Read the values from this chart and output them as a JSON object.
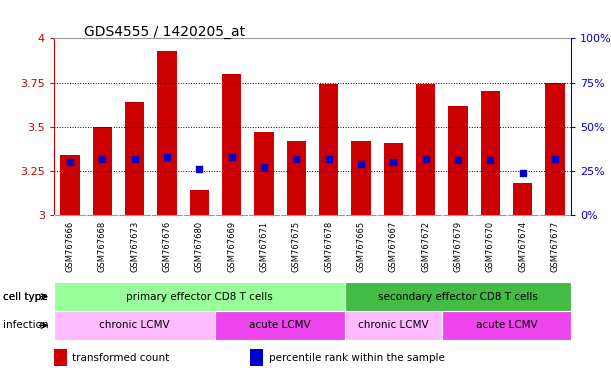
{
  "title": "GDS4555 / 1420205_at",
  "samples": [
    "GSM767666",
    "GSM767668",
    "GSM767673",
    "GSM767676",
    "GSM767680",
    "GSM767669",
    "GSM767671",
    "GSM767675",
    "GSM767678",
    "GSM767665",
    "GSM767667",
    "GSM767672",
    "GSM767679",
    "GSM767670",
    "GSM767674",
    "GSM767677"
  ],
  "transformed_count": [
    3.34,
    3.5,
    3.64,
    3.93,
    3.14,
    3.8,
    3.47,
    3.42,
    3.74,
    3.42,
    3.41,
    3.74,
    3.62,
    3.7,
    3.18,
    3.75
  ],
  "percentile_rank": [
    30,
    32,
    32,
    33,
    26,
    33,
    27,
    32,
    32,
    29,
    30,
    32,
    31,
    31,
    24,
    32
  ],
  "y_min": 3.0,
  "y_max": 4.0,
  "bar_color": "#cc0000",
  "dot_color": "#0000cc",
  "bg_color": "#ffffff",
  "tick_label_color": "#cc0000",
  "right_axis_color": "#0000cc",
  "cell_type_groups": [
    {
      "label": "primary effector CD8 T cells",
      "start": 0,
      "end": 9,
      "color": "#99ff99"
    },
    {
      "label": "secondary effector CD8 T cells",
      "start": 9,
      "end": 16,
      "color": "#44bb44"
    }
  ],
  "infection_groups": [
    {
      "label": "chronic LCMV",
      "start": 0,
      "end": 5,
      "color": "#ffbbff"
    },
    {
      "label": "acute LCMV",
      "start": 5,
      "end": 9,
      "color": "#ee44ee"
    },
    {
      "label": "chronic LCMV",
      "start": 9,
      "end": 12,
      "color": "#ffbbff"
    },
    {
      "label": "acute LCMV",
      "start": 12,
      "end": 16,
      "color": "#ee44ee"
    }
  ],
  "legend_items": [
    {
      "color": "#cc0000",
      "label": "transformed count"
    },
    {
      "color": "#0000cc",
      "label": "percentile rank within the sample"
    }
  ],
  "yticks": [
    3.0,
    3.25,
    3.5,
    3.75,
    4.0
  ],
  "ytick_labels_left": [
    "3",
    "3.25",
    "3.5",
    "3.75",
    "4"
  ],
  "ytick_labels_right": [
    "0%",
    "25%",
    "50%",
    "75%",
    "100%"
  ],
  "grid_yticks": [
    3.25,
    3.5,
    3.75
  ]
}
